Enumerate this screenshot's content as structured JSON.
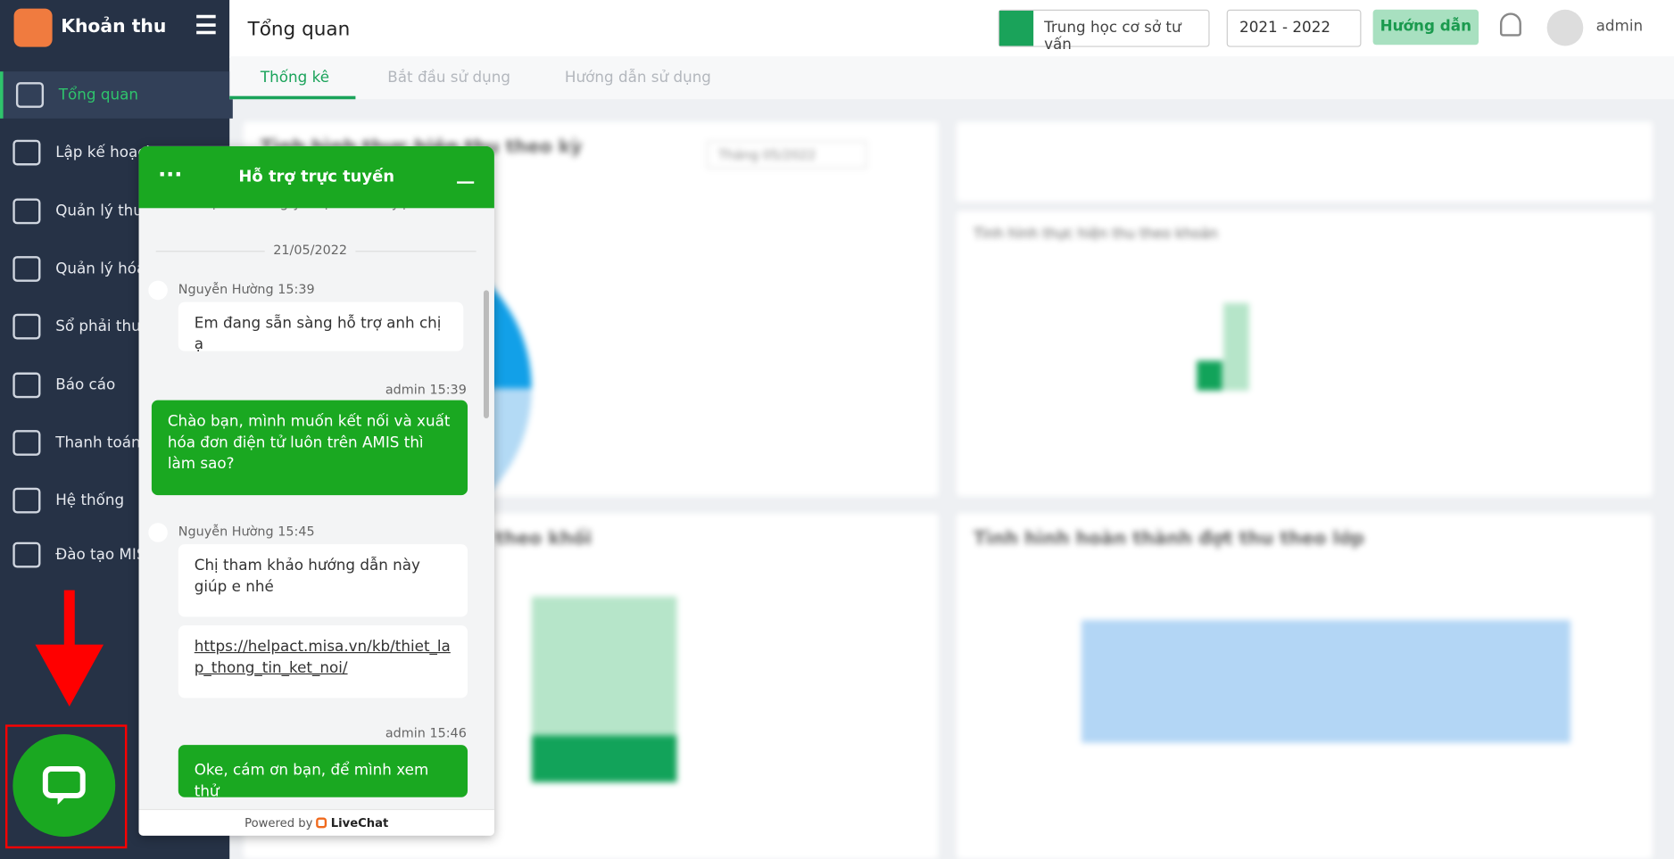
{
  "sidebar": {
    "brand": "Khoản thu",
    "menu": [
      "Tổng quan",
      "Lập kế hoạch",
      "Quản lý thu",
      "Quản lý hóa",
      "Sổ phải thu,",
      "Báo cáo",
      "Thanh toán",
      "Hệ thống",
      "Đào tạo MIS"
    ]
  },
  "header": {
    "title": "Tổng quan",
    "school": "Trung học cơ sở tư vấn",
    "year": "2021 - 2022",
    "guide": "Hướng dẫn",
    "user": "admin"
  },
  "tabs": [
    "Thống kê",
    "Bắt đầu sử dụng",
    "Hướng dẫn sử dụng"
  ],
  "dashboard": {
    "cards": [
      "Tình hình thực hiện thu theo kỳ",
      "Tình hình thực hiện thu theo khoản",
      "theo khối",
      "Tình hình hoàn thành đợt thu theo lớp"
    ],
    "period": "Tháng 05/2022"
  },
  "chat": {
    "title": "Hỗ trợ trực tuyến",
    "partial": "Bạn đã đồng ý cuộc trò chuyện",
    "date": "21/05/2022",
    "messages": [
      {
        "sender": "Nguyễn Hường",
        "time": "15:39",
        "texts": [
          "Em đang sẵn sàng hỗ trợ anh chị ạ"
        ]
      },
      {
        "sender": "admin",
        "time": "15:39",
        "texts": [
          "Chào bạn, mình muốn kết nối và xuất hóa đơn điện tử luôn trên AMIS thì làm sao?"
        ]
      },
      {
        "sender": "Nguyễn Hường",
        "time": "15:45",
        "texts": [
          "Chị tham khảo hướng dẫn này giúp e nhé",
          "https://helpact.misa.vn/kb/thiet_lap_thong_tin_ket_noi/"
        ]
      },
      {
        "sender": "admin",
        "time": "15:46",
        "texts": [
          "Oke, cám ơn bạn, để mình xem thử"
        ]
      }
    ],
    "powered": "Powered by",
    "brand": "LiveChat"
  }
}
